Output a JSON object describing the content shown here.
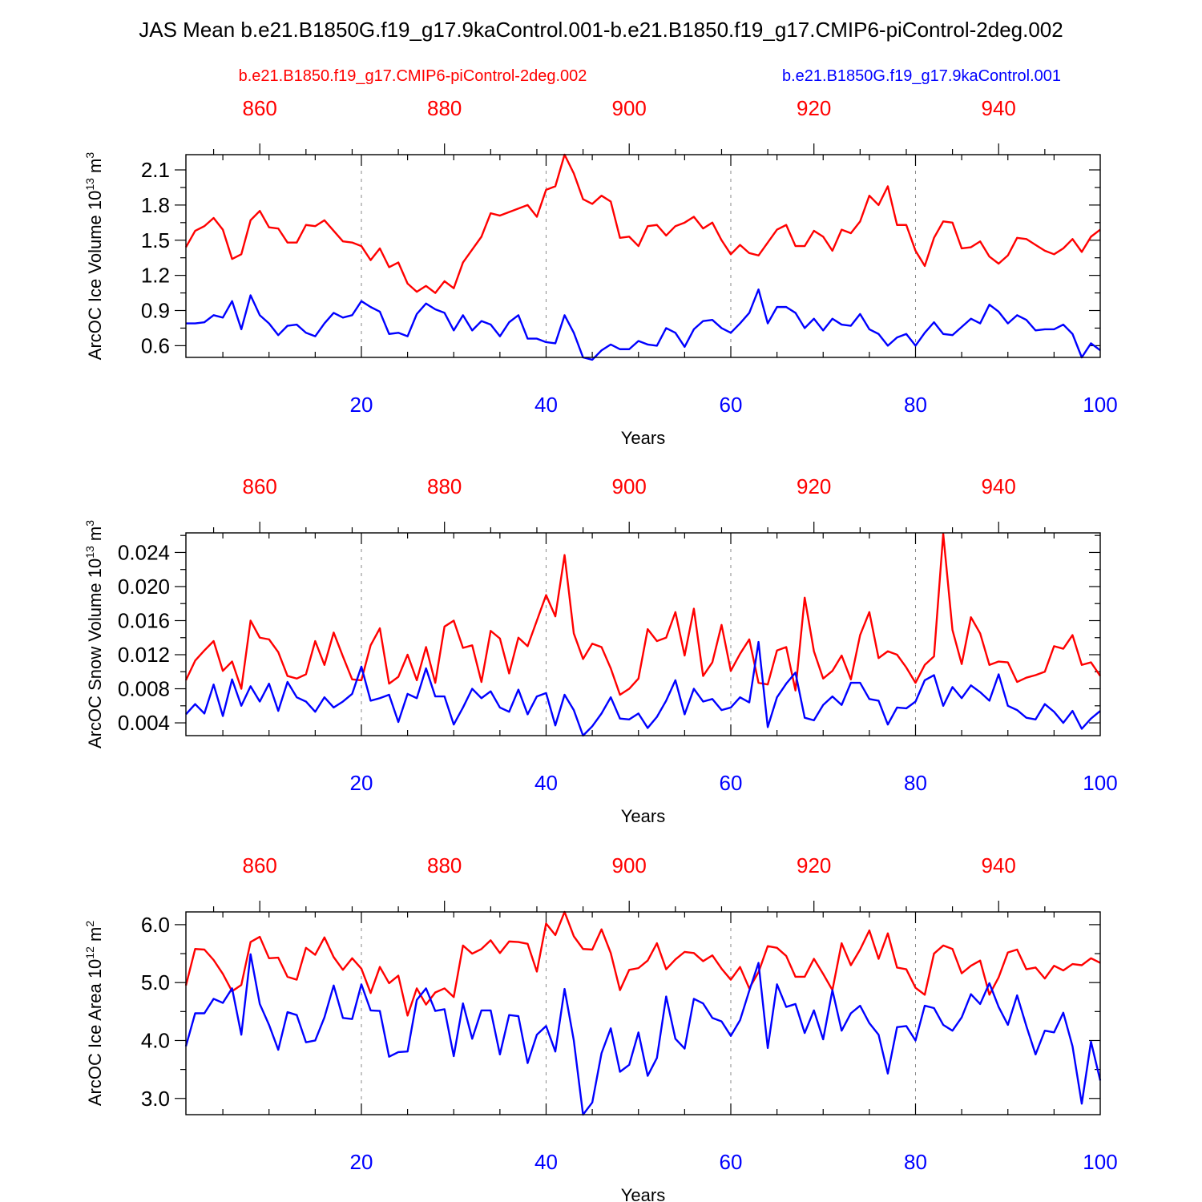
{
  "colors": {
    "red": "#ff0000",
    "blue": "#0000ff",
    "grid": "#8a8a8a"
  },
  "title": "JAS Mean b.e21.B1850G.f19_g17.9kaControl.001-b.e21.B1850.f19_g17.CMIP6-piControl-2deg.002",
  "legend": {
    "red_label": "b.e21.B1850.f19_g17.CMIP6-piControl-2deg.002",
    "blue_label": "b.e21.B1850G.f19_g17.9kaControl.001"
  },
  "chart_data": [
    {
      "type": "line",
      "ylabel_main": "ArcOC Ice Volume 10",
      "ylabel_exp": "13",
      "ylabel_unit": " m",
      "ylabel_unit_exp": "3",
      "xlabel": "Years",
      "xlim": [
        1,
        100
      ],
      "ylim": [
        0.5,
        2.23
      ],
      "yticks": [
        0.6,
        0.9,
        1.2,
        1.5,
        1.8,
        2.1
      ],
      "ytick_labels": [
        "0.6",
        "0.9",
        "1.2",
        "1.5",
        "1.8",
        "2.1"
      ],
      "xticks_bottom": [
        20,
        40,
        60,
        80,
        100
      ],
      "xtick_labels_bottom": [
        "20",
        "40",
        "60",
        "80",
        "100"
      ],
      "xticks_top": [
        860,
        880,
        900,
        920,
        940
      ],
      "xtick_labels_top": [
        "860",
        "880",
        "900",
        "920",
        "940"
      ],
      "top_axis_offset": 851,
      "series": [
        {
          "name": "b.e21.B1850.f19_g17.CMIP6-piControl-2deg.002",
          "color": "red",
          "values": [
            1.44,
            1.58,
            1.62,
            1.69,
            1.59,
            1.34,
            1.38,
            1.67,
            1.75,
            1.61,
            1.6,
            1.48,
            1.48,
            1.63,
            1.62,
            1.67,
            1.58,
            1.49,
            1.48,
            1.45,
            1.33,
            1.43,
            1.27,
            1.31,
            1.13,
            1.06,
            1.11,
            1.05,
            1.15,
            1.09,
            1.31,
            1.42,
            1.53,
            1.73,
            1.71,
            1.74,
            1.77,
            1.8,
            1.7,
            1.93,
            1.96,
            2.23,
            2.07,
            1.85,
            1.81,
            1.88,
            1.83,
            1.52,
            1.53,
            1.45,
            1.62,
            1.63,
            1.54,
            1.62,
            1.65,
            1.7,
            1.6,
            1.65,
            1.5,
            1.38,
            1.46,
            1.39,
            1.37,
            1.48,
            1.59,
            1.63,
            1.45,
            1.45,
            1.58,
            1.53,
            1.41,
            1.59,
            1.56,
            1.66,
            1.88,
            1.8,
            1.96,
            1.63,
            1.63,
            1.41,
            1.28,
            1.52,
            1.66,
            1.65,
            1.43,
            1.44,
            1.49,
            1.36,
            1.3,
            1.37,
            1.52,
            1.51,
            1.46,
            1.41,
            1.38,
            1.43,
            1.51,
            1.4,
            1.53,
            1.59
          ]
        },
        {
          "name": "b.e21.B1850G.f19_g17.9kaControl.001",
          "color": "blue",
          "values": [
            0.79,
            0.79,
            0.8,
            0.86,
            0.84,
            0.98,
            0.74,
            1.03,
            0.86,
            0.79,
            0.69,
            0.77,
            0.78,
            0.71,
            0.68,
            0.79,
            0.88,
            0.84,
            0.86,
            0.98,
            0.93,
            0.89,
            0.7,
            0.71,
            0.68,
            0.87,
            0.96,
            0.91,
            0.88,
            0.73,
            0.86,
            0.73,
            0.81,
            0.78,
            0.68,
            0.8,
            0.86,
            0.66,
            0.66,
            0.63,
            0.62,
            0.86,
            0.71,
            0.5,
            0.48,
            0.56,
            0.61,
            0.57,
            0.57,
            0.64,
            0.61,
            0.6,
            0.75,
            0.71,
            0.59,
            0.74,
            0.81,
            0.82,
            0.75,
            0.71,
            0.79,
            0.88,
            1.08,
            0.79,
            0.93,
            0.93,
            0.88,
            0.75,
            0.83,
            0.73,
            0.83,
            0.78,
            0.77,
            0.87,
            0.74,
            0.7,
            0.6,
            0.67,
            0.7,
            0.6,
            0.71,
            0.8,
            0.7,
            0.69,
            0.76,
            0.83,
            0.79,
            0.95,
            0.89,
            0.79,
            0.86,
            0.82,
            0.73,
            0.74,
            0.74,
            0.78,
            0.7,
            0.5,
            0.62,
            0.56
          ]
        }
      ]
    },
    {
      "type": "line",
      "ylabel_main": "ArcOC Snow Volume 10",
      "ylabel_exp": "13",
      "ylabel_unit": " m",
      "ylabel_unit_exp": "3",
      "xlabel": "Years",
      "xlim": [
        1,
        100
      ],
      "ylim": [
        0.0025,
        0.0263
      ],
      "yticks": [
        0.004,
        0.008,
        0.012,
        0.016,
        0.02,
        0.024
      ],
      "ytick_labels": [
        "0.004",
        "0.008",
        "0.012",
        "0.016",
        "0.020",
        "0.024"
      ],
      "xticks_bottom": [
        20,
        40,
        60,
        80,
        100
      ],
      "xtick_labels_bottom": [
        "20",
        "40",
        "60",
        "80",
        "100"
      ],
      "xticks_top": [
        860,
        880,
        900,
        920,
        940
      ],
      "xtick_labels_top": [
        "860",
        "880",
        "900",
        "920",
        "940"
      ],
      "top_axis_offset": 851,
      "series": [
        {
          "name": "b.e21.B1850.f19_g17.CMIP6-piControl-2deg.002",
          "color": "red",
          "values": [
            0.009,
            0.0113,
            0.0125,
            0.0136,
            0.0101,
            0.0112,
            0.008,
            0.016,
            0.014,
            0.0138,
            0.0123,
            0.0095,
            0.0092,
            0.0097,
            0.0136,
            0.0108,
            0.0146,
            0.0118,
            0.0091,
            0.009,
            0.0131,
            0.0151,
            0.0086,
            0.0094,
            0.012,
            0.009,
            0.0129,
            0.0087,
            0.0153,
            0.016,
            0.0128,
            0.0131,
            0.0088,
            0.0148,
            0.0139,
            0.0098,
            0.014,
            0.013,
            0.016,
            0.019,
            0.0165,
            0.0237,
            0.0145,
            0.0115,
            0.0133,
            0.0129,
            0.0104,
            0.0073,
            0.008,
            0.0092,
            0.015,
            0.0136,
            0.014,
            0.017,
            0.0119,
            0.0174,
            0.0095,
            0.0111,
            0.0155,
            0.0101,
            0.0121,
            0.0138,
            0.0087,
            0.0085,
            0.0125,
            0.0129,
            0.0078,
            0.0187,
            0.0124,
            0.0092,
            0.0101,
            0.0119,
            0.0091,
            0.0143,
            0.017,
            0.0116,
            0.0124,
            0.012,
            0.0105,
            0.0087,
            0.0108,
            0.0118,
            0.0262,
            0.0149,
            0.0109,
            0.0164,
            0.0145,
            0.0108,
            0.0112,
            0.0111,
            0.0088,
            0.0093,
            0.0096,
            0.01,
            0.013,
            0.0127,
            0.0143,
            0.0108,
            0.0111,
            0.0095
          ]
        },
        {
          "name": "b.e21.B1850G.f19_g17.9kaControl.001",
          "color": "blue",
          "values": [
            0.005,
            0.0062,
            0.0051,
            0.0085,
            0.0048,
            0.0091,
            0.006,
            0.0083,
            0.0065,
            0.0086,
            0.0054,
            0.0088,
            0.007,
            0.0065,
            0.0053,
            0.007,
            0.0058,
            0.0065,
            0.0074,
            0.0106,
            0.0066,
            0.0069,
            0.0073,
            0.0041,
            0.0074,
            0.0069,
            0.0104,
            0.0071,
            0.0071,
            0.0038,
            0.0058,
            0.008,
            0.0069,
            0.0077,
            0.0058,
            0.0053,
            0.0079,
            0.005,
            0.0071,
            0.0075,
            0.0037,
            0.0073,
            0.0055,
            0.0025,
            0.0036,
            0.0051,
            0.007,
            0.0045,
            0.0044,
            0.0051,
            0.0034,
            0.0047,
            0.0066,
            0.009,
            0.005,
            0.008,
            0.0065,
            0.0068,
            0.0055,
            0.0058,
            0.007,
            0.0064,
            0.0135,
            0.0035,
            0.007,
            0.0086,
            0.0099,
            0.0046,
            0.0043,
            0.0061,
            0.0071,
            0.0061,
            0.0087,
            0.0087,
            0.0068,
            0.0066,
            0.0038,
            0.0058,
            0.0057,
            0.0065,
            0.009,
            0.0096,
            0.006,
            0.0082,
            0.0069,
            0.0084,
            0.0076,
            0.0066,
            0.0097,
            0.006,
            0.0055,
            0.0046,
            0.0044,
            0.0062,
            0.0053,
            0.004,
            0.0054,
            0.0033,
            0.0045,
            0.0054
          ]
        }
      ]
    },
    {
      "type": "line",
      "ylabel_main": "ArcOC Ice Area 10",
      "ylabel_exp": "12",
      "ylabel_unit": " m",
      "ylabel_unit_exp": "2",
      "xlabel": "Years",
      "xlim": [
        1,
        100
      ],
      "ylim": [
        2.72,
        6.22
      ],
      "yticks": [
        3.0,
        4.0,
        5.0,
        6.0
      ],
      "ytick_labels": [
        "3.0",
        "4.0",
        "5.0",
        "6.0"
      ],
      "xticks_bottom": [
        20,
        40,
        60,
        80,
        100
      ],
      "xtick_labels_bottom": [
        "20",
        "40",
        "60",
        "80",
        "100"
      ],
      "xticks_top": [
        860,
        880,
        900,
        920,
        940
      ],
      "xtick_labels_top": [
        "860",
        "880",
        "900",
        "920",
        "940"
      ],
      "top_axis_offset": 851,
      "series": [
        {
          "name": "b.e21.B1850.f19_g17.CMIP6-piControl-2deg.002",
          "color": "red",
          "values": [
            4.95,
            5.58,
            5.57,
            5.39,
            5.15,
            4.85,
            4.96,
            5.7,
            5.79,
            5.42,
            5.43,
            5.1,
            5.05,
            5.6,
            5.48,
            5.78,
            5.44,
            5.22,
            5.42,
            5.24,
            4.82,
            5.27,
            4.99,
            5.12,
            4.43,
            4.9,
            4.62,
            4.83,
            4.9,
            4.75,
            5.64,
            5.5,
            5.58,
            5.73,
            5.51,
            5.71,
            5.7,
            5.67,
            5.19,
            6.02,
            5.82,
            6.22,
            5.8,
            5.58,
            5.57,
            5.92,
            5.51,
            4.87,
            5.22,
            5.25,
            5.38,
            5.68,
            5.23,
            5.4,
            5.53,
            5.51,
            5.37,
            5.47,
            5.24,
            5.05,
            5.27,
            4.9,
            5.18,
            5.63,
            5.6,
            5.46,
            5.1,
            5.1,
            5.41,
            5.15,
            4.87,
            5.68,
            5.3,
            5.57,
            5.9,
            5.41,
            5.85,
            5.26,
            5.23,
            4.91,
            4.79,
            5.5,
            5.64,
            5.58,
            5.16,
            5.29,
            5.38,
            4.79,
            5.09,
            5.52,
            5.57,
            5.23,
            5.26,
            5.07,
            5.29,
            5.21,
            5.32,
            5.3,
            5.42,
            5.34
          ]
        },
        {
          "name": "b.e21.B1850G.f19_g17.9kaControl.001",
          "color": "blue",
          "values": [
            3.9,
            4.47,
            4.47,
            4.72,
            4.65,
            4.9,
            4.1,
            5.49,
            4.63,
            4.27,
            3.84,
            4.49,
            4.44,
            3.97,
            4.0,
            4.4,
            4.95,
            4.39,
            4.37,
            4.97,
            4.52,
            4.51,
            3.72,
            3.8,
            3.81,
            4.7,
            4.9,
            4.51,
            4.54,
            3.73,
            4.64,
            4.03,
            4.52,
            4.52,
            3.76,
            4.44,
            4.42,
            3.61,
            4.1,
            4.25,
            3.81,
            4.89,
            4.0,
            2.72,
            2.93,
            3.78,
            4.21,
            3.46,
            3.58,
            4.14,
            3.39,
            3.7,
            4.76,
            4.03,
            3.86,
            4.72,
            4.64,
            4.39,
            4.33,
            4.08,
            4.35,
            4.86,
            5.34,
            3.87,
            4.97,
            4.58,
            4.63,
            4.13,
            4.52,
            4.02,
            4.87,
            4.17,
            4.47,
            4.6,
            4.3,
            4.1,
            3.43,
            4.23,
            4.25,
            4.0,
            4.6,
            4.56,
            4.27,
            4.17,
            4.4,
            4.8,
            4.63,
            4.99,
            4.58,
            4.27,
            4.78,
            4.25,
            3.76,
            4.17,
            4.14,
            4.48,
            3.9,
            2.91,
            3.98,
            3.31
          ]
        }
      ]
    }
  ]
}
